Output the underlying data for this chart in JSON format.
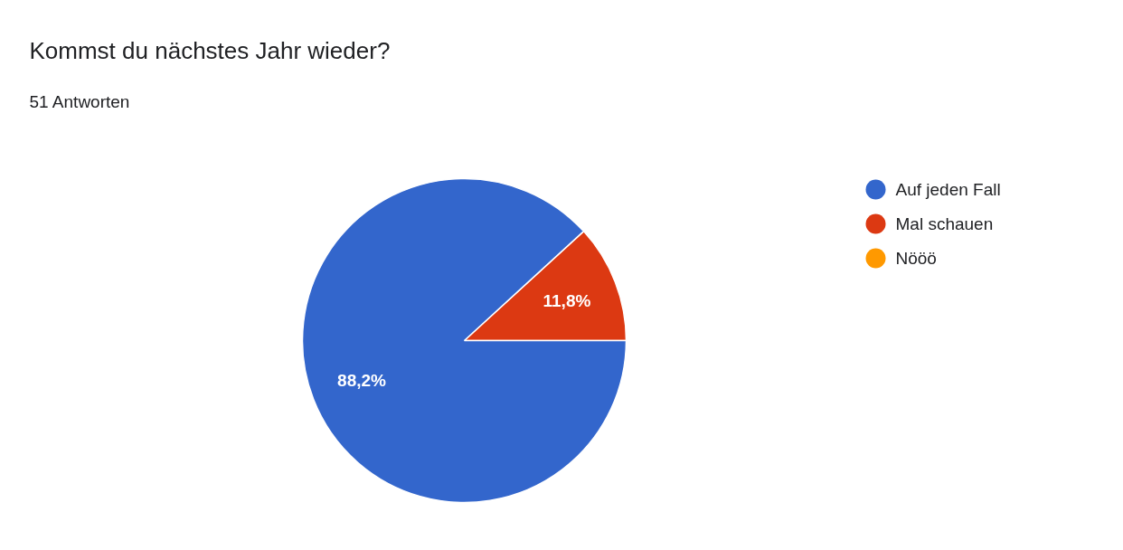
{
  "chart_data": {
    "type": "pie",
    "title": "Kommst du nächstes Jahr wieder?",
    "subtitle": "51 Antworten",
    "categories": [
      "Auf jeden Fall",
      "Mal schauen",
      "Nööö"
    ],
    "values": [
      88.2,
      11.8,
      0
    ],
    "colors": [
      "#3366cc",
      "#dc3912",
      "#ff9900"
    ],
    "value_labels": [
      "88,2%",
      "11,8%",
      null
    ],
    "legend": "right"
  }
}
